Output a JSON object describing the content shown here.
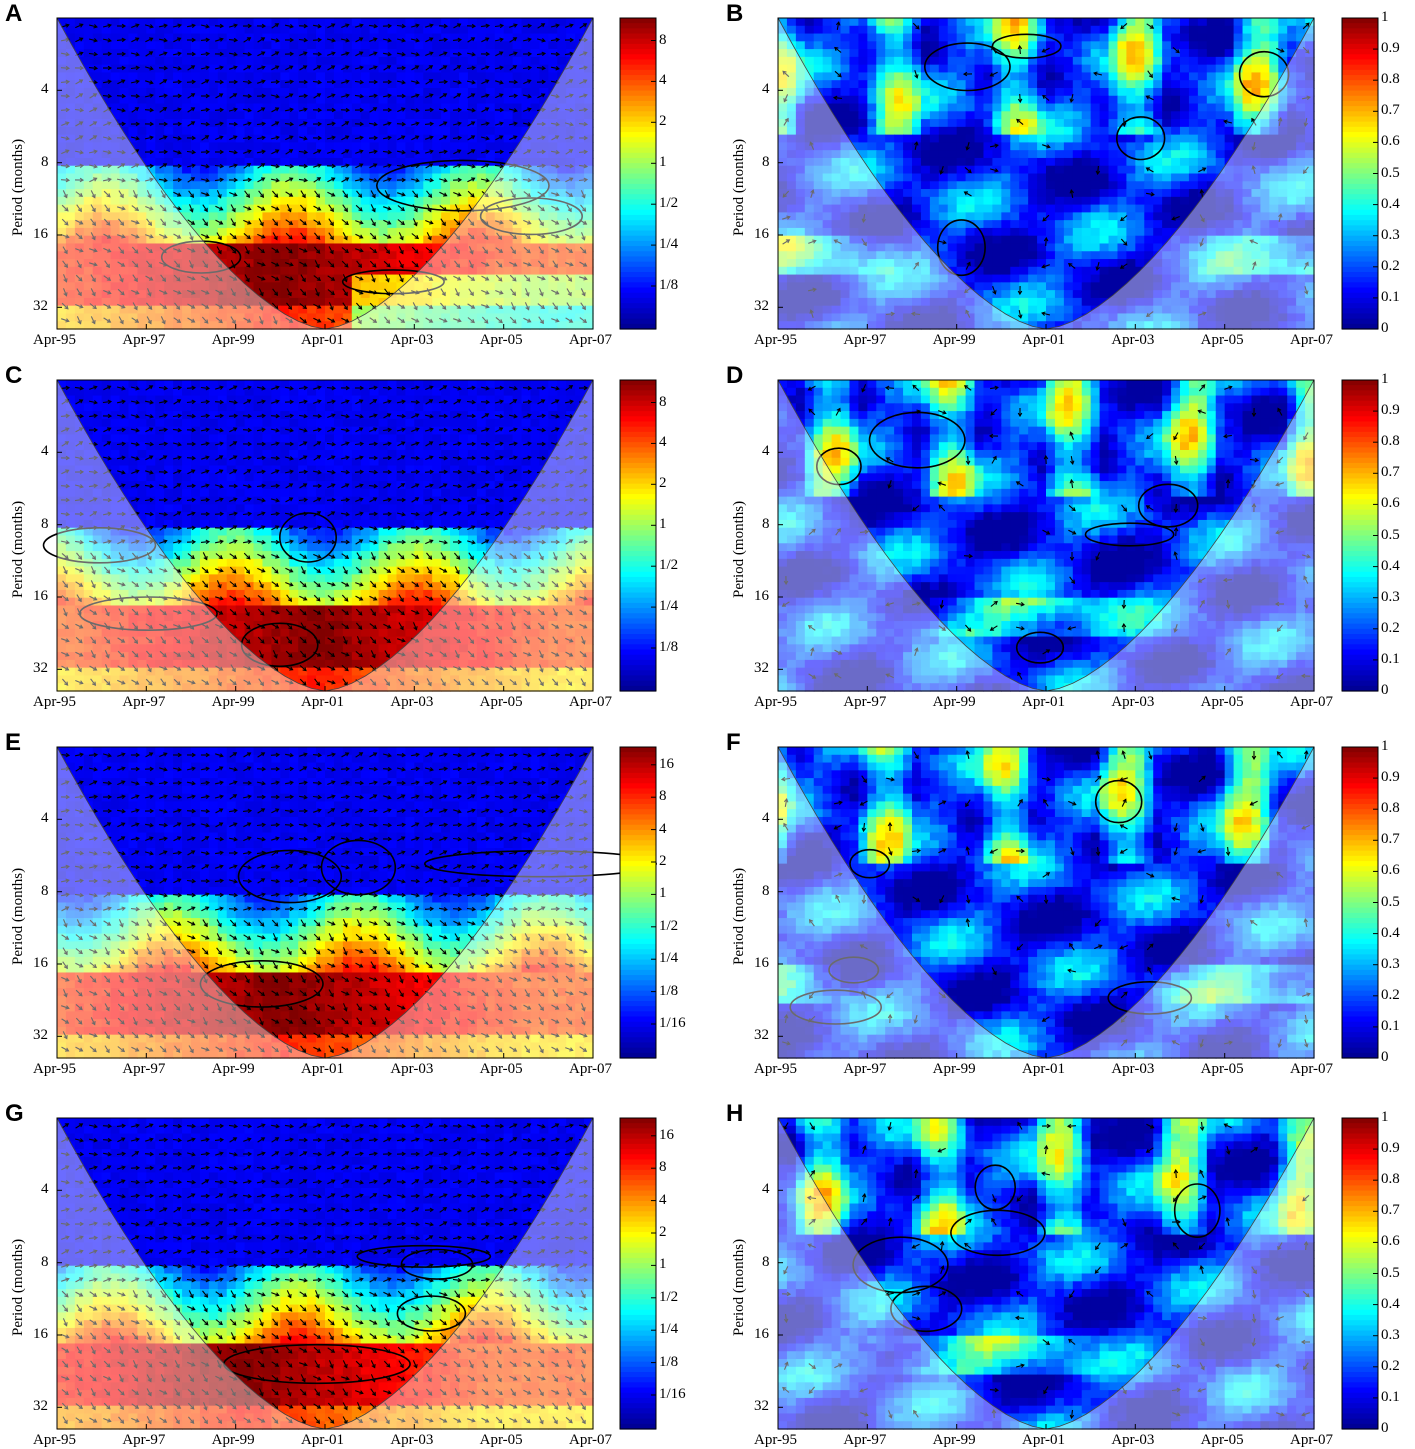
{
  "colors": {
    "colormap": [
      "#00008f",
      "#0000ff",
      "#0080ff",
      "#00ffff",
      "#80ff80",
      "#ffff00",
      "#ff8000",
      "#ff0000",
      "#800000"
    ],
    "coi_shade": "#ffffff",
    "contour": "#000000",
    "arrow": "#000000"
  },
  "chart_data": [
    {
      "panel": "A",
      "type": "heatmap",
      "kind": "wavelet-power",
      "title": "",
      "xlabel": "",
      "ylabel": "Period (months)",
      "x_ticks": [
        "Apr-95",
        "Apr-97",
        "Apr-99",
        "Apr-01",
        "Apr-03",
        "Apr-05",
        "Apr-07"
      ],
      "y_ticks": [
        "4",
        "8",
        "16",
        "32"
      ],
      "y_scale": "log2",
      "colorbar": {
        "ticks": [
          "8",
          "4",
          "2",
          "1",
          "1/2",
          "1/4",
          "1/8"
        ],
        "scale": "log2"
      },
      "cone_of_influence": true,
      "phase_arrows": true,
      "significance_contours": true,
      "regions": [
        {
          "period_months": [
            2,
            9
          ],
          "level": "low"
        },
        {
          "period_months": [
            9,
            18
          ],
          "level": "mixed"
        },
        {
          "period_months": [
            18,
            40
          ],
          "level": "high",
          "peak_time": "Apr-00",
          "peak_period_months": 24
        }
      ]
    },
    {
      "panel": "B",
      "type": "heatmap",
      "kind": "wavelet-coherence",
      "title": "",
      "xlabel": "",
      "ylabel": "Period (months)",
      "x_ticks": [
        "Apr-95",
        "Apr-97",
        "Apr-99",
        "Apr-01",
        "Apr-03",
        "Apr-05",
        "Apr-07"
      ],
      "y_ticks": [
        "4",
        "8",
        "16",
        "32"
      ],
      "y_scale": "log2",
      "colorbar": {
        "ticks": [
          "1",
          "0.9",
          "0.8",
          "0.7",
          "0.6",
          "0.5",
          "0.4",
          "0.3",
          "0.2",
          "0.1",
          "0"
        ],
        "scale": "linear",
        "range": [
          0,
          1
        ]
      },
      "cone_of_influence": true,
      "phase_arrows": true,
      "significance_contours": true
    },
    {
      "panel": "C",
      "type": "heatmap",
      "kind": "wavelet-power",
      "title": "",
      "xlabel": "",
      "ylabel": "Period (months)",
      "x_ticks": [
        "Apr-95",
        "Apr-97",
        "Apr-99",
        "Apr-01",
        "Apr-03",
        "Apr-05",
        "Apr-07"
      ],
      "y_ticks": [
        "4",
        "8",
        "16",
        "32"
      ],
      "y_scale": "log2",
      "colorbar": {
        "ticks": [
          "8",
          "4",
          "2",
          "1",
          "1/2",
          "1/4",
          "1/8"
        ],
        "scale": "log2"
      },
      "cone_of_influence": true,
      "phase_arrows": true,
      "significance_contours": true,
      "regions": [
        {
          "period_months": [
            2,
            9
          ],
          "level": "low"
        },
        {
          "period_months": [
            9,
            20
          ],
          "level": "mixed"
        },
        {
          "period_months": [
            20,
            40
          ],
          "level": "high",
          "peak_time": "Apr-01",
          "peak_period_months": 30
        }
      ]
    },
    {
      "panel": "D",
      "type": "heatmap",
      "kind": "wavelet-coherence",
      "title": "",
      "xlabel": "",
      "ylabel": "Period (months)",
      "x_ticks": [
        "Apr-95",
        "Apr-97",
        "Apr-99",
        "Apr-01",
        "Apr-03",
        "Apr-05",
        "Apr-07"
      ],
      "y_ticks": [
        "4",
        "8",
        "16",
        "32"
      ],
      "y_scale": "log2",
      "colorbar": {
        "ticks": [
          "1",
          "0.9",
          "0.8",
          "0.7",
          "0.6",
          "0.5",
          "0.4",
          "0.3",
          "0.2",
          "0.1",
          "0"
        ],
        "scale": "linear",
        "range": [
          0,
          1
        ]
      },
      "cone_of_influence": true,
      "phase_arrows": true,
      "significance_contours": true
    },
    {
      "panel": "E",
      "type": "heatmap",
      "kind": "wavelet-power",
      "title": "",
      "xlabel": "",
      "ylabel": "Period (months)",
      "x_ticks": [
        "Apr-95",
        "Apr-97",
        "Apr-99",
        "Apr-01",
        "Apr-03",
        "Apr-05",
        "Apr-07"
      ],
      "y_ticks": [
        "4",
        "8",
        "16",
        "32"
      ],
      "y_scale": "log2",
      "colorbar": {
        "ticks": [
          "16",
          "8",
          "4",
          "2",
          "1",
          "1/2",
          "1/4",
          "1/8",
          "1/16"
        ],
        "scale": "log2"
      },
      "cone_of_influence": true,
      "phase_arrows": true,
      "significance_contours": true,
      "regions": [
        {
          "period_months": [
            2,
            9
          ],
          "level": "low"
        },
        {
          "period_months": [
            9,
            20
          ],
          "level": "mixed"
        },
        {
          "period_months": [
            20,
            40
          ],
          "level": "high",
          "peak_time": "Apr-00",
          "peak_period_months": 24
        }
      ]
    },
    {
      "panel": "F",
      "type": "heatmap",
      "kind": "wavelet-coherence",
      "title": "",
      "xlabel": "",
      "ylabel": "Period (months)",
      "x_ticks": [
        "Apr-95",
        "Apr-97",
        "Apr-99",
        "Apr-01",
        "Apr-03",
        "Apr-05",
        "Apr-07"
      ],
      "y_ticks": [
        "4",
        "8",
        "16",
        "32"
      ],
      "y_scale": "log2",
      "colorbar": {
        "ticks": [
          "1",
          "0.9",
          "0.8",
          "0.7",
          "0.6",
          "0.5",
          "0.4",
          "0.3",
          "0.2",
          "0.1",
          "0"
        ],
        "scale": "linear",
        "range": [
          0,
          1
        ]
      },
      "cone_of_influence": true,
      "phase_arrows": true,
      "significance_contours": true
    },
    {
      "panel": "G",
      "type": "heatmap",
      "kind": "wavelet-power",
      "title": "",
      "xlabel": "",
      "ylabel": "Period (months)",
      "x_ticks": [
        "Apr-95",
        "Apr-97",
        "Apr-99",
        "Apr-01",
        "Apr-03",
        "Apr-05",
        "Apr-07"
      ],
      "y_ticks": [
        "4",
        "8",
        "16",
        "32"
      ],
      "y_scale": "log2",
      "colorbar": {
        "ticks": [
          "16",
          "8",
          "4",
          "2",
          "1",
          "1/2",
          "1/4",
          "1/8",
          "1/16"
        ],
        "scale": "log2"
      },
      "cone_of_influence": true,
      "phase_arrows": true,
      "significance_contours": true,
      "regions": [
        {
          "period_months": [
            2,
            10
          ],
          "level": "low"
        },
        {
          "period_months": [
            10,
            18
          ],
          "level": "mixed"
        },
        {
          "period_months": [
            18,
            40
          ],
          "level": "high",
          "peak_time": "Apr-99",
          "peak_period_months": 26
        }
      ]
    },
    {
      "panel": "H",
      "type": "heatmap",
      "kind": "wavelet-coherence",
      "title": "",
      "xlabel": "",
      "ylabel": "Period (months)",
      "x_ticks": [
        "Apr-95",
        "Apr-97",
        "Apr-99",
        "Apr-01",
        "Apr-03",
        "Apr-05",
        "Apr-07"
      ],
      "y_ticks": [
        "4",
        "8",
        "16",
        "32"
      ],
      "y_scale": "log2",
      "colorbar": {
        "ticks": [
          "1",
          "0.9",
          "0.8",
          "0.7",
          "0.6",
          "0.5",
          "0.4",
          "0.3",
          "0.2",
          "0.1",
          "0"
        ],
        "scale": "linear",
        "range": [
          0,
          1
        ]
      },
      "cone_of_influence": true,
      "phase_arrows": true,
      "significance_contours": true
    }
  ]
}
